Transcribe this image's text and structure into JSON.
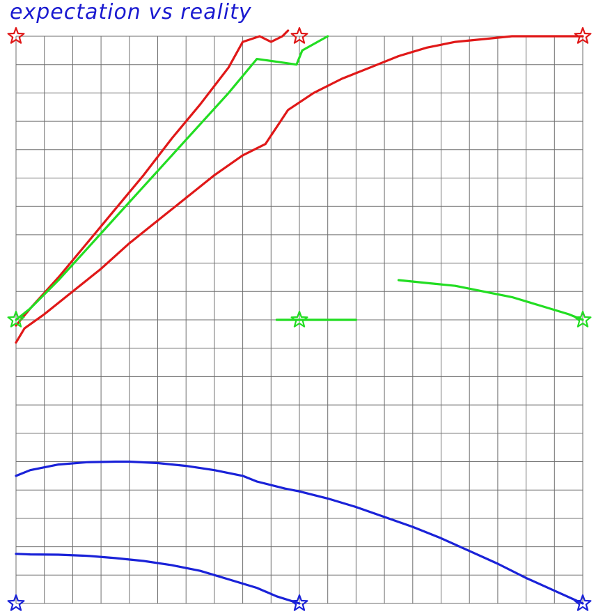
{
  "title": "expectation vs reality",
  "colors": {
    "title": "#1a1ad0",
    "grid": "#6e6e6e",
    "red": "#e01818",
    "green": "#22dd22",
    "blue": "#1a22d8",
    "background": "#ffffff"
  },
  "chart_data": {
    "type": "line",
    "title": "expectation vs reality",
    "xlabel": "",
    "ylabel": "",
    "grid": true,
    "xlim": [
      0,
      20
    ],
    "ylim": [
      0,
      20
    ],
    "series": [
      {
        "color": "red",
        "x": [
          0,
          0.5,
          1.5,
          2.5,
          3.5,
          4.5,
          5.5,
          6.5,
          7.5,
          8.0,
          8.6,
          9.0,
          9.4,
          9.6
        ],
        "y": [
          9.8,
          10.4,
          11.5,
          12.7,
          13.9,
          15.1,
          16.4,
          17.6,
          18.9,
          19.8,
          20.0,
          19.8,
          20.0,
          20.2
        ]
      },
      {
        "color": "red",
        "x": [
          0,
          0.3,
          1.0,
          2.0,
          3.0,
          4.0,
          5.0,
          6.0,
          7.0,
          8.0,
          8.8,
          9.6,
          10.5,
          11.5,
          12.5,
          13.5,
          14.5,
          15.5,
          16.5,
          17.5,
          18.5,
          19.5,
          20.0
        ],
        "y": [
          9.2,
          9.7,
          10.2,
          11.0,
          11.8,
          12.7,
          13.5,
          14.3,
          15.1,
          15.8,
          16.2,
          17.4,
          18.0,
          18.5,
          18.9,
          19.3,
          19.6,
          19.8,
          19.9,
          20.0,
          20.0,
          20.0,
          20.0
        ]
      },
      {
        "color": "green",
        "x": [
          0,
          0.5,
          1.5,
          2.5,
          3.5,
          4.5,
          5.5,
          6.5,
          7.5,
          8.5,
          9.2,
          9.9,
          10.1,
          11.0
        ],
        "y": [
          10.0,
          10.4,
          11.4,
          12.5,
          13.6,
          14.7,
          15.8,
          16.9,
          18.0,
          19.2,
          19.1,
          19.0,
          19.5,
          20.0
        ]
      },
      {
        "color": "green",
        "x": [
          9.2,
          10.0,
          11.0,
          12.0
        ],
        "y": [
          10.0,
          10.0,
          10.0,
          10.0
        ]
      },
      {
        "color": "green",
        "x": [
          13.5,
          14.5,
          15.5,
          16.5,
          17.5,
          18.5,
          19.5,
          20.0
        ],
        "y": [
          11.4,
          11.3,
          11.2,
          11.0,
          10.8,
          10.5,
          10.2,
          10.0
        ]
      },
      {
        "color": "blue",
        "x": [
          0,
          0.5,
          1.5,
          2.5,
          3.5,
          4.0,
          5.0,
          6.0,
          7.0,
          8.0,
          8.5,
          9.5,
          10.0,
          11.0,
          12.0,
          13.0,
          14.0,
          15.0,
          16.0,
          17.0,
          18.0,
          19.0,
          20.0
        ],
        "y": [
          4.5,
          4.7,
          4.9,
          4.98,
          5.0,
          5.0,
          4.95,
          4.85,
          4.7,
          4.5,
          4.3,
          4.05,
          3.95,
          3.7,
          3.4,
          3.05,
          2.7,
          2.3,
          1.85,
          1.4,
          0.9,
          0.45,
          0.0
        ]
      },
      {
        "color": "blue",
        "x": [
          0,
          0.5,
          1.5,
          2.5,
          3.5,
          4.5,
          5.5,
          6.5,
          7.5,
          8.5,
          9.2,
          10.0
        ],
        "y": [
          1.75,
          1.73,
          1.72,
          1.68,
          1.6,
          1.5,
          1.35,
          1.15,
          0.85,
          0.55,
          0.25,
          0.0
        ]
      }
    ],
    "stars": [
      {
        "color": "red",
        "x": 0,
        "y": 20
      },
      {
        "color": "red",
        "x": 10,
        "y": 20
      },
      {
        "color": "red",
        "x": 20,
        "y": 20
      },
      {
        "color": "green",
        "x": 0,
        "y": 10
      },
      {
        "color": "green",
        "x": 10,
        "y": 10
      },
      {
        "color": "green",
        "x": 20,
        "y": 10
      },
      {
        "color": "blue",
        "x": 0,
        "y": 0
      },
      {
        "color": "blue",
        "x": 10,
        "y": 0
      },
      {
        "color": "blue",
        "x": 20,
        "y": 0
      }
    ]
  }
}
